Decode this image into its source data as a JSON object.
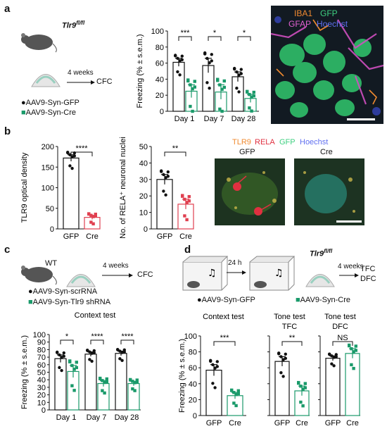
{
  "panels": {
    "a": {
      "letter": "a",
      "genotype": "Tlr9",
      "genotype_sup": "fl/fl",
      "protocol_time": "4 weeks",
      "protocol_test": "CFC",
      "legend": [
        "AAV9-Syn-GFP",
        "AAV9-Syn-Cre"
      ],
      "image_labels": {
        "iba1": "IBA1",
        "gfp": "GFP",
        "gfap": "GFAP",
        "hoechst": "Hoechst"
      }
    },
    "b": {
      "letter": "b",
      "image_labels": {
        "tlr9": "TLR9",
        "rela": "RELA",
        "gfp": "GFP",
        "hoechst": "Hoechst"
      },
      "image_titles": [
        "GFP",
        "Cre"
      ]
    },
    "c": {
      "letter": "c",
      "genotype": "WT",
      "protocol_time": "4 weeks",
      "protocol_test": "CFC",
      "legend": [
        "AAV9-Syn-scrRNA",
        "AAV9-Syn-Tlr9 shRNA"
      ]
    },
    "d": {
      "letter": "d",
      "delay": "24 h",
      "genotype": "Tlr9",
      "genotype_sup": "fl/fl",
      "protocol_time": "4 weeks",
      "protocol_tests": [
        "TFC",
        "DFC"
      ],
      "legend": [
        "AAV9-Syn-GFP",
        "AAV9-Syn-Cre"
      ]
    }
  },
  "colors": {
    "ctrl": "#111111",
    "treat": "#1a9a6a",
    "red": "#e04050",
    "green_bg": "#1a5a3a"
  },
  "chart_data": [
    {
      "id": "a-freezing",
      "type": "bar",
      "ylabel": "Freezing (% ± s.e.m.)",
      "ylim": [
        0,
        100
      ],
      "yticks": [
        0,
        20,
        40,
        60,
        80,
        100
      ],
      "categories": [
        "Day 1",
        "Day 7",
        "Day 28"
      ],
      "series": [
        {
          "name": "AAV9-Syn-GFP",
          "values": [
            61,
            57,
            43
          ],
          "errors": [
            5,
            9,
            6
          ]
        },
        {
          "name": "AAV9-Syn-Cre",
          "values": [
            25,
            24,
            16
          ],
          "errors": [
            8,
            9,
            5
          ]
        }
      ],
      "significance": [
        "***",
        "*",
        "*"
      ]
    },
    {
      "id": "b-optical",
      "type": "bar",
      "ylabel": "TLR9 optical density",
      "ylim": [
        0,
        200
      ],
      "yticks": [
        0,
        50,
        100,
        150,
        200
      ],
      "categories": [
        "GFP",
        "Cre"
      ],
      "values": [
        172,
        28
      ],
      "errors": [
        8,
        5
      ],
      "significance": [
        "****"
      ]
    },
    {
      "id": "b-nuclei",
      "type": "bar",
      "ylabel": "No. of RELA⁺ neuronal nuclei",
      "ylim": [
        0,
        50
      ],
      "yticks": [
        0,
        10,
        20,
        30,
        40,
        50
      ],
      "categories": [
        "GFP",
        "Cre"
      ],
      "values": [
        30,
        15
      ],
      "errors": [
        3,
        3
      ],
      "significance": [
        "**"
      ]
    },
    {
      "id": "c-context",
      "type": "bar",
      "title": "Context test",
      "ylabel": "Freezing (% ± s.e.m.)",
      "ylim": [
        0,
        100
      ],
      "yticks": [
        0,
        10,
        20,
        30,
        40,
        50,
        60,
        70,
        80,
        90,
        100
      ],
      "categories": [
        "Day 1",
        "Day 7",
        "Day 28"
      ],
      "series": [
        {
          "name": "AAV9-Syn-scrRNA",
          "values": [
            68,
            74,
            75
          ],
          "errors": [
            5,
            3,
            3
          ]
        },
        {
          "name": "AAV9-Syn-Tlr9 shRNA",
          "values": [
            51,
            35,
            35
          ],
          "errors": [
            8,
            4,
            3
          ]
        }
      ],
      "significance": [
        "*",
        "****",
        "****"
      ]
    },
    {
      "id": "d-context",
      "type": "bar",
      "title": "Context test",
      "ylabel": "Freezing (% ± s.e.m.)",
      "ylim": [
        0,
        100
      ],
      "yticks": [
        0,
        20,
        40,
        60,
        80,
        100
      ],
      "categories": [
        "GFP",
        "Cre"
      ],
      "values": [
        57,
        25
      ],
      "errors": [
        7,
        4
      ],
      "significance": [
        "***"
      ]
    },
    {
      "id": "d-tone-tfc",
      "type": "bar",
      "title": "Tone test",
      "subtitle": "TFC",
      "ylim": [
        0,
        100
      ],
      "categories": [
        "GFP",
        "Cre"
      ],
      "values": [
        68,
        31
      ],
      "errors": [
        6,
        6
      ],
      "significance": [
        "**"
      ]
    },
    {
      "id": "d-tone-dfc",
      "type": "bar",
      "title": "Tone test",
      "subtitle": "DFC",
      "ylim": [
        0,
        100
      ],
      "categories": [
        "GFP",
        "Cre"
      ],
      "values": [
        72,
        78
      ],
      "errors": [
        3,
        6
      ],
      "significance": [
        "NS"
      ]
    }
  ]
}
